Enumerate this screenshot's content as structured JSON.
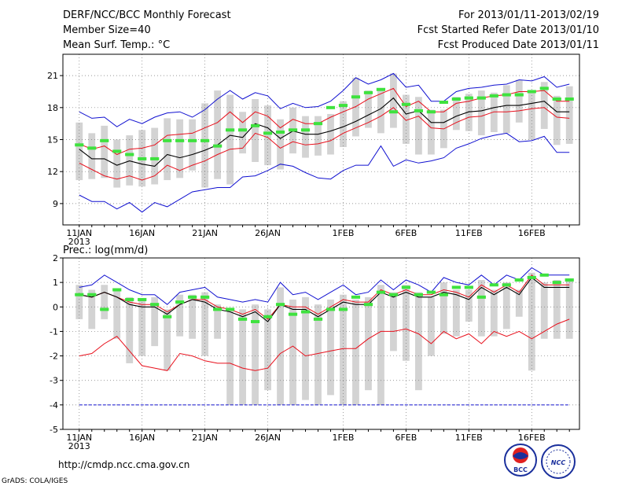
{
  "header": {
    "left": [
      "DERF/NCC/BCC Monthly Forecast",
      "Member Size=40",
      "Mean Surf. Temp.: °C"
    ],
    "right": [
      "For 2013/01/11-2013/02/19",
      "Fcst Started Refer Date 2013/01/10",
      "Fcst Produced Date 2013/01/11"
    ]
  },
  "footer": {
    "url": "http://cmdp.ncc.cma.gov.cn",
    "grads": "GrADS: COLA/IGES",
    "logo_bcc": "BCC",
    "logo_ncc": "NCC"
  },
  "colors": {
    "box": "#d3d3d3",
    "mean": "#000000",
    "ensemble_band": "#e8101c",
    "extreme": "#1010d0",
    "climatology": "#3ee23e",
    "grid": "#777777"
  },
  "chart_data": [
    {
      "type": "box-and-line",
      "title": "Mean Surf. Temp.: °C",
      "x_labels": [
        "11JAN",
        "16JAN",
        "21JAN",
        "26JAN",
        "1FEB",
        "6FEB",
        "11FEB",
        "16FEB"
      ],
      "x_label_days": [
        1,
        6,
        11,
        16,
        22,
        27,
        32,
        37
      ],
      "x_year_label": "2013",
      "days": 40,
      "ylim": [
        7,
        23
      ],
      "yticks": [
        9,
        12,
        15,
        18,
        21
      ],
      "mean": [
        14.1,
        13.2,
        13.2,
        12.6,
        13.0,
        12.7,
        12.5,
        13.6,
        13.3,
        13.6,
        14.0,
        14.5,
        15.4,
        15.2,
        16.5,
        16.1,
        15.1,
        15.8,
        15.5,
        15.5,
        15.8,
        16.2,
        16.7,
        17.3,
        17.9,
        18.9,
        17.4,
        17.7,
        16.6,
        16.6,
        17.2,
        17.6,
        17.7,
        18.0,
        18.2,
        18.2,
        18.4,
        18.6,
        17.6,
        17.6
      ],
      "band_upper": [
        14.6,
        14.1,
        14.4,
        13.6,
        14.1,
        14.2,
        14.5,
        15.4,
        15.5,
        15.6,
        16.1,
        16.6,
        17.6,
        16.6,
        17.6,
        17.2,
        16.1,
        16.9,
        16.5,
        16.5,
        17.1,
        17.6,
        18.1,
        18.8,
        19.3,
        19.8,
        18.1,
        18.6,
        17.6,
        17.6,
        18.4,
        18.6,
        18.9,
        19.1,
        19.2,
        19.5,
        19.5,
        19.6,
        18.6,
        18.6
      ],
      "band_lower": [
        12.8,
        12.2,
        11.6,
        11.3,
        11.6,
        11.2,
        11.6,
        12.6,
        12.1,
        12.6,
        13.0,
        13.6,
        14.1,
        14.2,
        15.6,
        15.2,
        14.2,
        14.8,
        14.5,
        14.6,
        14.9,
        15.6,
        16.1,
        16.6,
        17.2,
        18.0,
        16.8,
        17.2,
        16.1,
        16.0,
        16.6,
        17.1,
        17.2,
        17.6,
        17.6,
        17.7,
        17.9,
        18.0,
        17.1,
        17.0
      ],
      "extreme_upper": [
        17.6,
        17.0,
        17.1,
        16.2,
        16.9,
        16.5,
        17.1,
        17.5,
        17.6,
        17.1,
        17.8,
        18.8,
        19.6,
        18.8,
        19.4,
        19.1,
        17.9,
        18.4,
        18.0,
        18.1,
        18.6,
        19.6,
        20.8,
        20.2,
        20.6,
        21.2,
        19.9,
        20.1,
        18.6,
        18.6,
        19.5,
        19.8,
        19.9,
        20.1,
        20.2,
        20.6,
        20.5,
        20.9,
        19.9,
        20.2
      ],
      "extreme_lower": [
        9.8,
        9.2,
        9.2,
        8.5,
        9.1,
        8.2,
        9.1,
        8.7,
        9.4,
        10.1,
        10.3,
        10.5,
        10.5,
        11.5,
        11.6,
        12.1,
        12.7,
        12.5,
        11.9,
        11.4,
        11.3,
        12.1,
        12.6,
        12.6,
        14.4,
        12.5,
        13.1,
        12.8,
        13.0,
        13.3,
        14.2,
        14.6,
        15.1,
        15.4,
        15.6,
        14.8,
        14.9,
        15.3,
        13.8,
        13.8
      ],
      "climatology": [
        14.5,
        14.2,
        14.9,
        13.9,
        13.6,
        13.2,
        13.2,
        14.9,
        14.9,
        14.9,
        14.9,
        14.4,
        15.9,
        15.9,
        16.3,
        15.6,
        15.7,
        15.9,
        15.9,
        16.5,
        18.0,
        18.2,
        19.0,
        19.4,
        19.7,
        17.6,
        18.3,
        17.7,
        17.6,
        18.5,
        18.8,
        18.9,
        18.9,
        19.1,
        19.2,
        19.2,
        19.5,
        19.8,
        18.8,
        18.8
      ],
      "box_top": [
        16.6,
        15.6,
        16.3,
        15.0,
        15.4,
        15.9,
        16.1,
        17.0,
        16.9,
        16.9,
        18.4,
        19.6,
        19.2,
        17.6,
        18.8,
        18.2,
        16.9,
        18.0,
        17.2,
        17.2,
        17.4,
        18.6,
        20.8,
        19.6,
        19.6,
        21.2,
        19.2,
        19.0,
        17.8,
        17.8,
        19.0,
        19.3,
        19.6,
        19.4,
        20.1,
        20.6,
        19.6,
        20.4,
        19.1,
        20.0
      ],
      "box_bottom": [
        11.2,
        11.3,
        11.4,
        10.5,
        10.7,
        10.6,
        10.8,
        11.2,
        11.4,
        12.1,
        10.5,
        11.3,
        10.8,
        13.7,
        12.9,
        12.6,
        12.2,
        13.7,
        13.3,
        13.5,
        13.6,
        14.3,
        15.3,
        16.1,
        15.6,
        16.1,
        14.6,
        13.6,
        13.6,
        14.2,
        15.9,
        15.8,
        15.4,
        15.7,
        15.6,
        16.6,
        15.0,
        16.0,
        14.5,
        14.6
      ]
    },
    {
      "type": "box-and-line",
      "title": "Prec.: log(mm/d)",
      "x_labels": [
        "11JAN",
        "16JAN",
        "21JAN",
        "26JAN",
        "1FEB",
        "6FEB",
        "11FEB",
        "16FEB"
      ],
      "x_label_days": [
        1,
        6,
        11,
        16,
        22,
        27,
        32,
        37
      ],
      "x_year_label": "2013",
      "days": 40,
      "ylim": [
        -5,
        2
      ],
      "yticks": [
        -5,
        -4,
        -3,
        -2,
        -1,
        0,
        1,
        2
      ],
      "mean": [
        0.5,
        0.4,
        0.6,
        0.4,
        0.1,
        0.0,
        0.0,
        -0.3,
        0.1,
        0.3,
        0.2,
        -0.1,
        -0.2,
        -0.4,
        -0.2,
        -0.6,
        0.1,
        -0.1,
        -0.1,
        -0.4,
        -0.1,
        0.2,
        0.1,
        0.1,
        0.6,
        0.4,
        0.6,
        0.4,
        0.4,
        0.6,
        0.5,
        0.3,
        0.8,
        0.5,
        0.8,
        0.5,
        1.2,
        0.8,
        0.8,
        0.8
      ],
      "band_upper": [
        0.5,
        0.4,
        0.6,
        0.4,
        0.2,
        0.1,
        0.1,
        -0.2,
        0.1,
        0.3,
        0.3,
        0.0,
        -0.1,
        -0.3,
        -0.1,
        -0.5,
        0.1,
        0.0,
        0.0,
        -0.3,
        0.0,
        0.3,
        0.2,
        0.2,
        0.7,
        0.5,
        0.7,
        0.5,
        0.5,
        0.7,
        0.6,
        0.4,
        0.9,
        0.6,
        0.9,
        0.6,
        1.3,
        0.9,
        0.9,
        0.9
      ],
      "band_lower": [
        -2.0,
        -1.9,
        -1.5,
        -1.2,
        -1.8,
        -2.4,
        -2.5,
        -2.6,
        -1.9,
        -2.0,
        -2.2,
        -2.3,
        -2.3,
        -2.5,
        -2.6,
        -2.5,
        -1.9,
        -1.6,
        -2.0,
        -1.9,
        -1.8,
        -1.7,
        -1.7,
        -1.3,
        -1.0,
        -1.0,
        -0.9,
        -1.1,
        -1.5,
        -1.0,
        -1.3,
        -1.1,
        -1.5,
        -1.0,
        -1.2,
        -1.0,
        -1.3,
        -1.0,
        -0.7,
        -0.5
      ],
      "extreme_upper": [
        0.8,
        0.9,
        1.3,
        1.0,
        0.7,
        0.5,
        0.5,
        0.1,
        0.6,
        0.7,
        0.8,
        0.4,
        0.3,
        0.2,
        0.3,
        0.2,
        1.0,
        0.5,
        0.6,
        0.3,
        0.6,
        0.9,
        0.5,
        0.6,
        1.1,
        0.7,
        1.1,
        0.9,
        0.6,
        1.2,
        1.0,
        0.9,
        1.3,
        0.9,
        1.3,
        1.1,
        1.6,
        1.3,
        1.3,
        1.3
      ],
      "extreme_lower": [
        -4.0,
        -4.0,
        -4.0,
        -4.0,
        -4.0,
        -4.0,
        -4.0,
        -4.0,
        -4.0,
        -4.0,
        -4.0,
        -4.0,
        -4.0,
        -4.0,
        -4.0,
        -4.0,
        -4.0,
        -4.0,
        -4.0,
        -4.0,
        -4.0,
        -4.0,
        -4.0,
        -4.0,
        -4.0,
        -4.0,
        -4.0,
        -4.0,
        -4.0,
        -4.0,
        -4.0,
        -4.0,
        -4.0,
        -4.0,
        -4.0,
        -4.0,
        -4.0,
        -4.0,
        -4.0,
        -4.0
      ],
      "climatology": [
        0.5,
        0.5,
        -0.1,
        0.7,
        0.3,
        0.3,
        0.1,
        -0.4,
        0.2,
        0.4,
        0.4,
        -0.1,
        -0.1,
        -0.5,
        -0.6,
        -0.4,
        0.1,
        -0.3,
        -0.2,
        -0.5,
        -0.1,
        -0.1,
        0.4,
        0.1,
        0.6,
        0.5,
        0.8,
        0.5,
        0.6,
        0.5,
        0.8,
        0.8,
        0.4,
        0.9,
        0.9,
        1.1,
        1.2,
        1.3,
        1.0,
        1.1
      ],
      "box_top": [
        0.9,
        0.7,
        0.9,
        0.7,
        0.4,
        0.3,
        0.4,
        -0.1,
        0.5,
        0.5,
        0.6,
        0.1,
        -0.1,
        -0.1,
        0.1,
        -0.1,
        0.8,
        0.3,
        0.4,
        0.1,
        0.3,
        0.5,
        0.3,
        0.4,
        0.9,
        0.6,
        0.9,
        0.6,
        0.4,
        1.0,
        0.7,
        0.7,
        1.1,
        0.7,
        1.0,
        0.7,
        1.4,
        1.0,
        1.1,
        1.1
      ],
      "box_bottom": [
        -0.5,
        -0.9,
        -0.5,
        -1.3,
        -2.3,
        -2.0,
        -1.6,
        -2.6,
        -1.2,
        -1.3,
        -2.0,
        -1.3,
        -4.0,
        -4.0,
        -4.0,
        -3.4,
        -4.0,
        -4.0,
        -3.8,
        -4.0,
        -3.6,
        -4.0,
        -4.0,
        -3.4,
        -4.0,
        -1.8,
        -2.2,
        -3.4,
        -2.0,
        -1.1,
        -1.2,
        -0.6,
        -1.2,
        -1.2,
        -0.9,
        -0.4,
        -2.6,
        -1.3,
        -1.3,
        -1.3
      ]
    }
  ]
}
